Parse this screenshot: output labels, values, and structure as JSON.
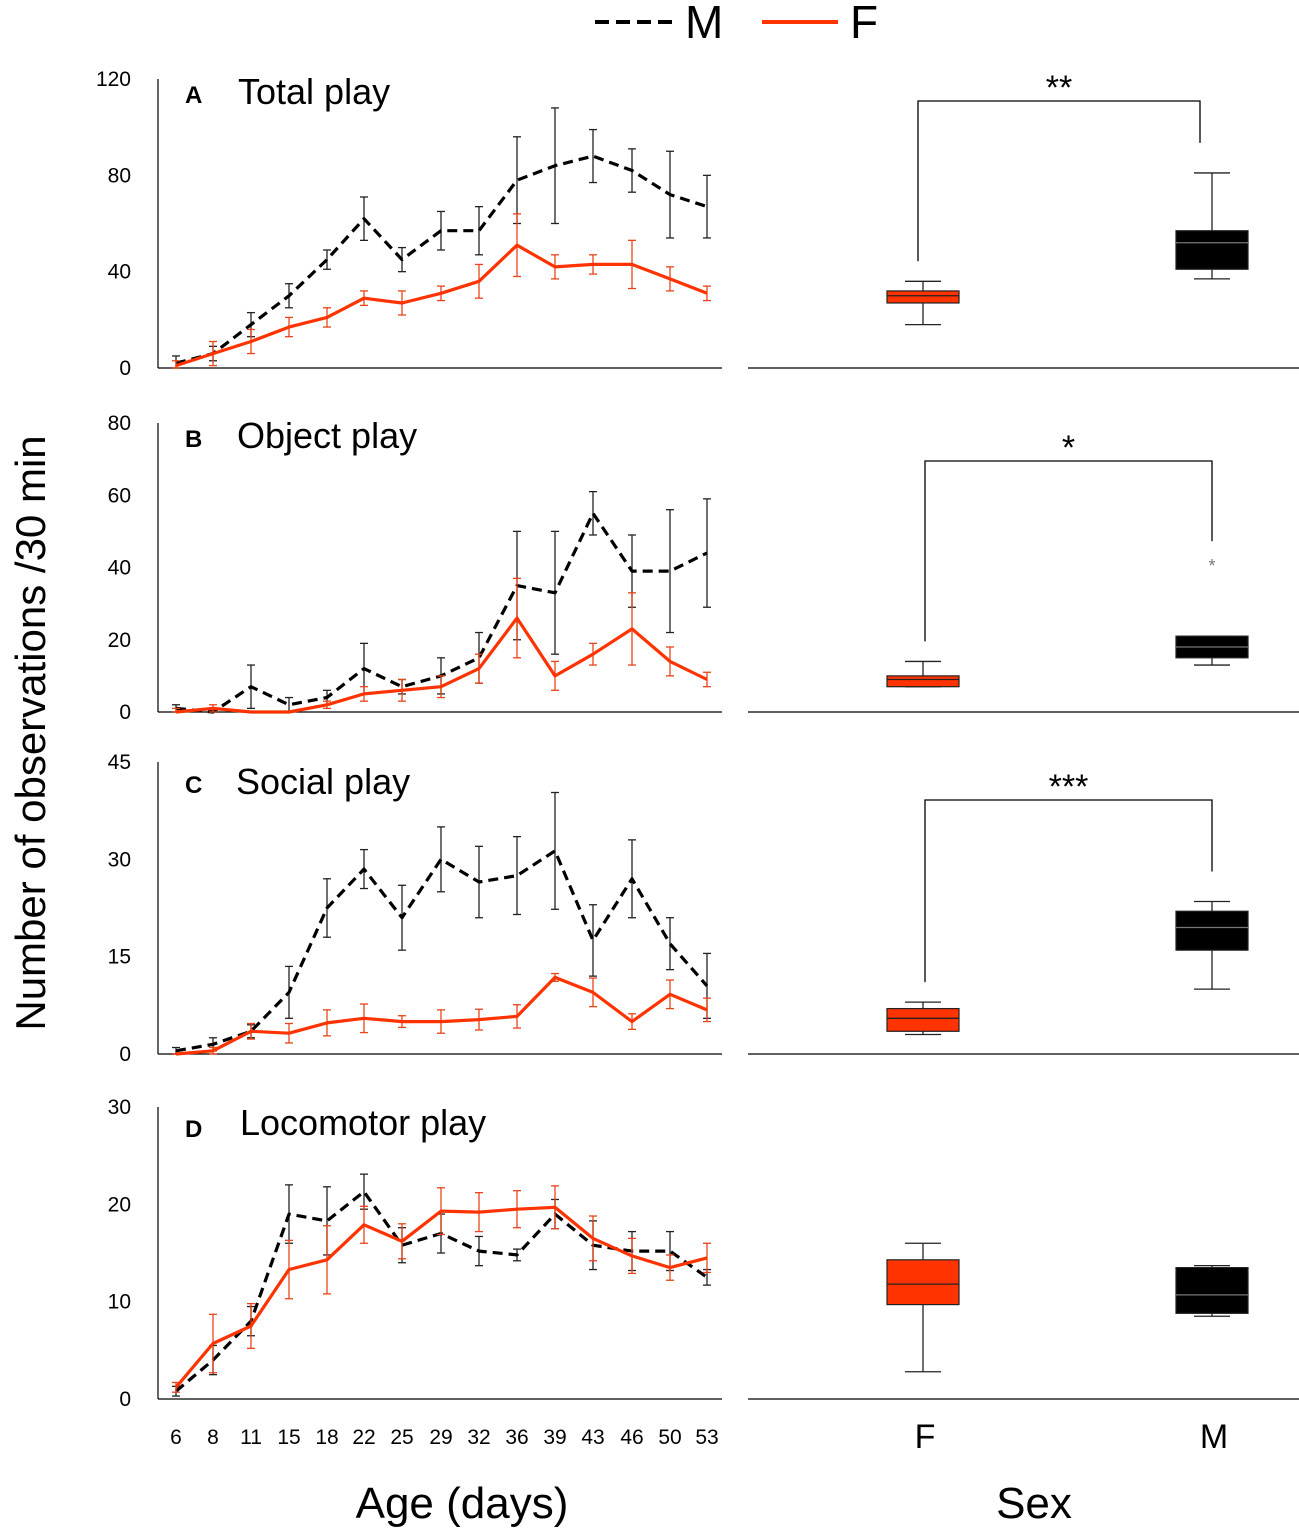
{
  "figure": {
    "legend": {
      "male_label": "M",
      "female_label": "F"
    },
    "y_axis_label": "Number of observations /30 min",
    "x_axis_label_left": "Age (days)",
    "x_axis_label_right": "Sex",
    "colors": {
      "male": "#000000",
      "female": "#ff3300",
      "male_error": "#222222",
      "female_error": "#e8441a"
    }
  },
  "chart_data": [
    {
      "type": "line",
      "panel": "A",
      "title": "Total play",
      "xlabel": "Age (days)",
      "ylabel": "Number of observations /30 min",
      "categories": [
        "6",
        "8",
        "11",
        "15",
        "18",
        "22",
        "25",
        "29",
        "32",
        "36",
        "39",
        "43",
        "46",
        "50",
        "53"
      ],
      "ylim": [
        0,
        120
      ],
      "yticks": [
        0,
        40,
        80,
        120
      ],
      "series": [
        {
          "name": "M",
          "style": "dashed",
          "values": [
            2,
            6,
            18,
            30,
            45,
            62,
            45,
            57,
            57,
            78,
            84,
            88,
            82,
            72,
            67
          ],
          "err": [
            3,
            3,
            5,
            5,
            4,
            9,
            5,
            8,
            10,
            18,
            24,
            11,
            9,
            18,
            13
          ]
        },
        {
          "name": "F",
          "style": "solid",
          "values": [
            1,
            6,
            11,
            17,
            21,
            29,
            27,
            31,
            36,
            51,
            42,
            43,
            43,
            37,
            31
          ],
          "err": [
            2,
            5,
            5,
            4,
            4,
            3,
            5,
            3,
            7,
            13,
            5,
            4,
            10,
            5,
            3
          ]
        }
      ]
    },
    {
      "type": "box",
      "panel": "A",
      "categories": [
        "F",
        "M"
      ],
      "boxes": [
        {
          "name": "F",
          "min": 18,
          "q1": 27,
          "median": 30,
          "q3": 32,
          "max": 36
        },
        {
          "name": "M",
          "min": 37,
          "q1": 41,
          "median": 52,
          "q3": 57,
          "max": 81
        }
      ],
      "significance": "**"
    },
    {
      "type": "line",
      "panel": "B",
      "title": "Object play",
      "categories": [
        "6",
        "8",
        "11",
        "15",
        "18",
        "22",
        "25",
        "29",
        "32",
        "36",
        "39",
        "43",
        "46",
        "50",
        "53"
      ],
      "ylim": [
        0,
        80
      ],
      "yticks": [
        0,
        20,
        40,
        60,
        80
      ],
      "series": [
        {
          "name": "M",
          "style": "dashed",
          "values": [
            1,
            0,
            7,
            2,
            4,
            12,
            7,
            10,
            15,
            35,
            33,
            55,
            39,
            39,
            44
          ],
          "err": [
            1,
            1,
            6,
            2,
            2,
            7,
            2,
            5,
            7,
            15,
            17,
            6,
            10,
            17,
            15
          ]
        },
        {
          "name": "F",
          "style": "solid",
          "values": [
            0,
            1,
            0,
            0,
            2,
            5,
            6,
            7,
            12,
            26,
            10,
            16,
            23,
            14,
            9
          ],
          "err": [
            1,
            1,
            0,
            0,
            1,
            2,
            3,
            3,
            4,
            11,
            4,
            3,
            10,
            4,
            2
          ]
        }
      ]
    },
    {
      "type": "box",
      "panel": "B",
      "categories": [
        "F",
        "M"
      ],
      "boxes": [
        {
          "name": "F",
          "min": 7,
          "q1": 7,
          "median": 9,
          "q3": 10,
          "max": 14
        },
        {
          "name": "M",
          "min": 13,
          "q1": 15,
          "median": 18,
          "q3": 21,
          "max": 21,
          "outliers": [
            41
          ]
        }
      ],
      "significance": "*"
    },
    {
      "type": "line",
      "panel": "C",
      "title": "Social play",
      "categories": [
        "6",
        "8",
        "11",
        "15",
        "18",
        "22",
        "25",
        "29",
        "32",
        "36",
        "39",
        "43",
        "46",
        "50",
        "53"
      ],
      "ylim": [
        0,
        45
      ],
      "yticks": [
        0,
        15,
        30,
        45
      ],
      "series": [
        {
          "name": "M",
          "style": "dashed",
          "values": [
            0.5,
            1.5,
            3.5,
            9.5,
            22.5,
            28.5,
            21,
            30,
            26.5,
            27.5,
            31.3,
            17.5,
            27,
            17,
            10.5
          ],
          "err": [
            0.5,
            1,
            1,
            4,
            4.5,
            3,
            5,
            5,
            5.5,
            6,
            9,
            5.5,
            6,
            4,
            5
          ]
        },
        {
          "name": "F",
          "style": "solid",
          "values": [
            0,
            0.5,
            3.5,
            3.2,
            4.8,
            5.5,
            5,
            5,
            5.3,
            5.8,
            11.8,
            9.5,
            5,
            9.2,
            6.8
          ],
          "err": [
            0,
            0.5,
            1.2,
            1.5,
            2,
            2.2,
            0.9,
            1.8,
            1.6,
            1.8,
            0.6,
            2.2,
            1.2,
            2.2,
            1.8
          ]
        }
      ]
    },
    {
      "type": "box",
      "panel": "C",
      "categories": [
        "F",
        "M"
      ],
      "boxes": [
        {
          "name": "F",
          "min": 3,
          "q1": 3.5,
          "median": 5.5,
          "q3": 7,
          "max": 8
        },
        {
          "name": "M",
          "min": 10,
          "q1": 16,
          "median": 19.5,
          "q3": 22,
          "max": 23.5
        }
      ],
      "significance": "***"
    },
    {
      "type": "line",
      "panel": "D",
      "title": "Locomotor play",
      "categories": [
        "6",
        "8",
        "11",
        "15",
        "18",
        "22",
        "25",
        "29",
        "32",
        "36",
        "39",
        "43",
        "46",
        "50",
        "53"
      ],
      "ylim": [
        0,
        30
      ],
      "yticks": [
        0,
        10,
        20,
        30
      ],
      "series": [
        {
          "name": "M",
          "style": "dashed",
          "values": [
            0.8,
            4,
            8,
            19,
            18.3,
            21.3,
            15.8,
            17,
            15.2,
            14.8,
            19,
            15.8,
            15.2,
            15.2,
            12.5
          ],
          "err": [
            0.5,
            1.5,
            1.5,
            3,
            3.5,
            1.8,
            1.8,
            2,
            1.5,
            0.6,
            1.5,
            2.5,
            2,
            2,
            0.8
          ]
        },
        {
          "name": "F",
          "style": "solid",
          "values": [
            1.2,
            5.7,
            7.5,
            13.3,
            14.3,
            17.9,
            16.2,
            19.3,
            19.2,
            19.5,
            19.7,
            16.5,
            14.7,
            13.5,
            14.5
          ],
          "err": [
            0.5,
            3,
            2.3,
            3,
            3.5,
            1.9,
            1.8,
            2.4,
            2,
            1.9,
            2.2,
            2.3,
            1.8,
            1.3,
            1.5
          ]
        }
      ]
    },
    {
      "type": "box",
      "panel": "D",
      "categories": [
        "F",
        "M"
      ],
      "boxes": [
        {
          "name": "F",
          "min": 2.8,
          "q1": 9.7,
          "median": 11.8,
          "q3": 14.3,
          "max": 16
        },
        {
          "name": "M",
          "min": 8.5,
          "q1": 8.8,
          "median": 10.7,
          "q3": 13.5,
          "max": 13.7
        }
      ],
      "significance": ""
    }
  ]
}
